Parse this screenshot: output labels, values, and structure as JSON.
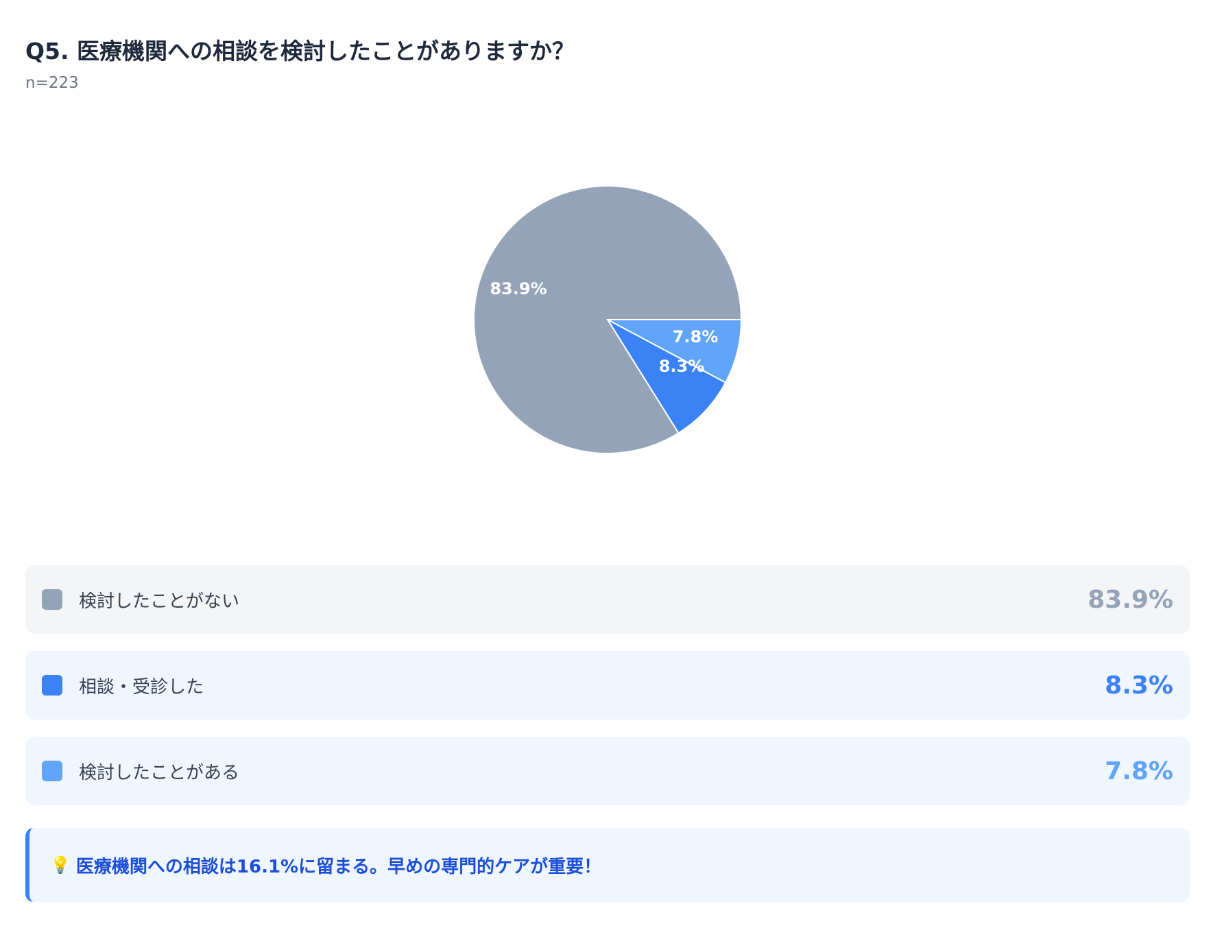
{
  "header": {
    "title": "Q5. 医療機関への相談を検討したことがありますか？",
    "sample": "n=223"
  },
  "chart_data": {
    "type": "pie",
    "categories": [
      "検討したことがない",
      "相談・受診した",
      "検討したことがある"
    ],
    "values": [
      83.9,
      8.3,
      7.8
    ],
    "labels": [
      "83.9%",
      "8.3%",
      "7.8%"
    ],
    "colors": [
      "#94a3b8",
      "#3b82f6",
      "#60a5fa"
    ],
    "legend_placement": "bottom"
  },
  "legend": [
    {
      "label": "検討したことがない",
      "value": "83.9%",
      "color": "#94a3b8",
      "bg": "#f4f5f7"
    },
    {
      "label": "相談・受診した",
      "value": "8.3%",
      "color": "#3b82f6",
      "bg": "#eff6ff"
    },
    {
      "label": "検討したことがある",
      "value": "7.8%",
      "color": "#60a5fa",
      "bg": "#eff6ff"
    }
  ],
  "insight": {
    "icon": "lightbulb-icon",
    "text": "医療機関への相談は16.1%に留まる。早めの専門的ケアが重要！"
  }
}
